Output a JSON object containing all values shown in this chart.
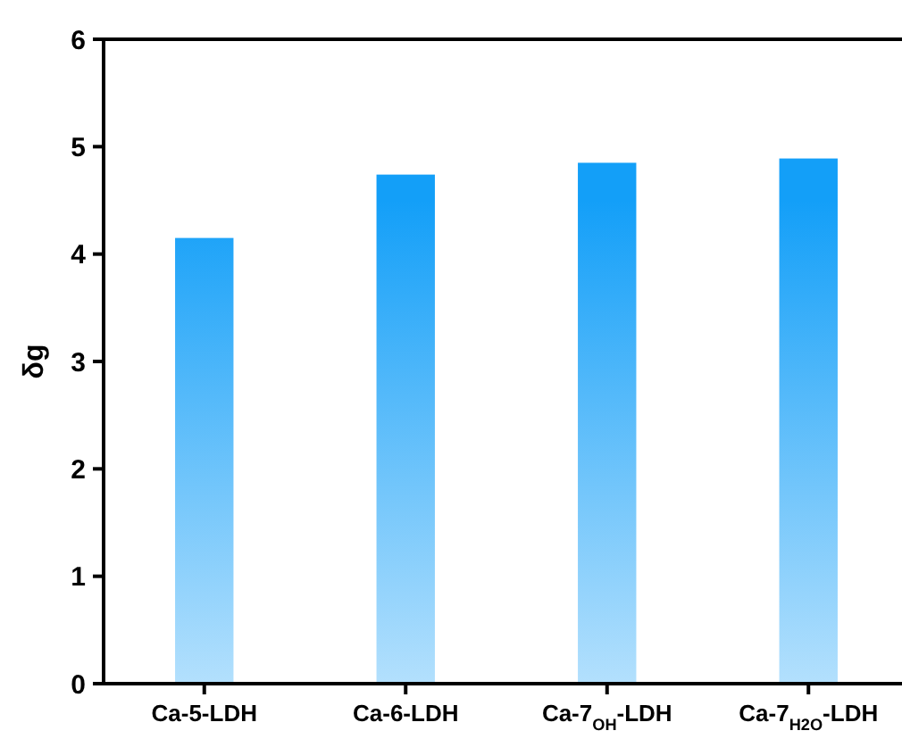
{
  "chart_data": {
    "type": "bar",
    "ylabel": "δg",
    "categories": [
      "Ca-5-LDH",
      "Ca-6-LDH",
      "Ca-7$_{OH}$-LDH",
      "Ca-7$_{H2O}$-LDH"
    ],
    "values": [
      4.15,
      4.74,
      4.85,
      4.89
    ],
    "color": "#139ff8",
    "ylim": [
      0,
      6
    ],
    "yticks": [
      0,
      1,
      2,
      3,
      4,
      5,
      6
    ],
    "grid": false
  }
}
